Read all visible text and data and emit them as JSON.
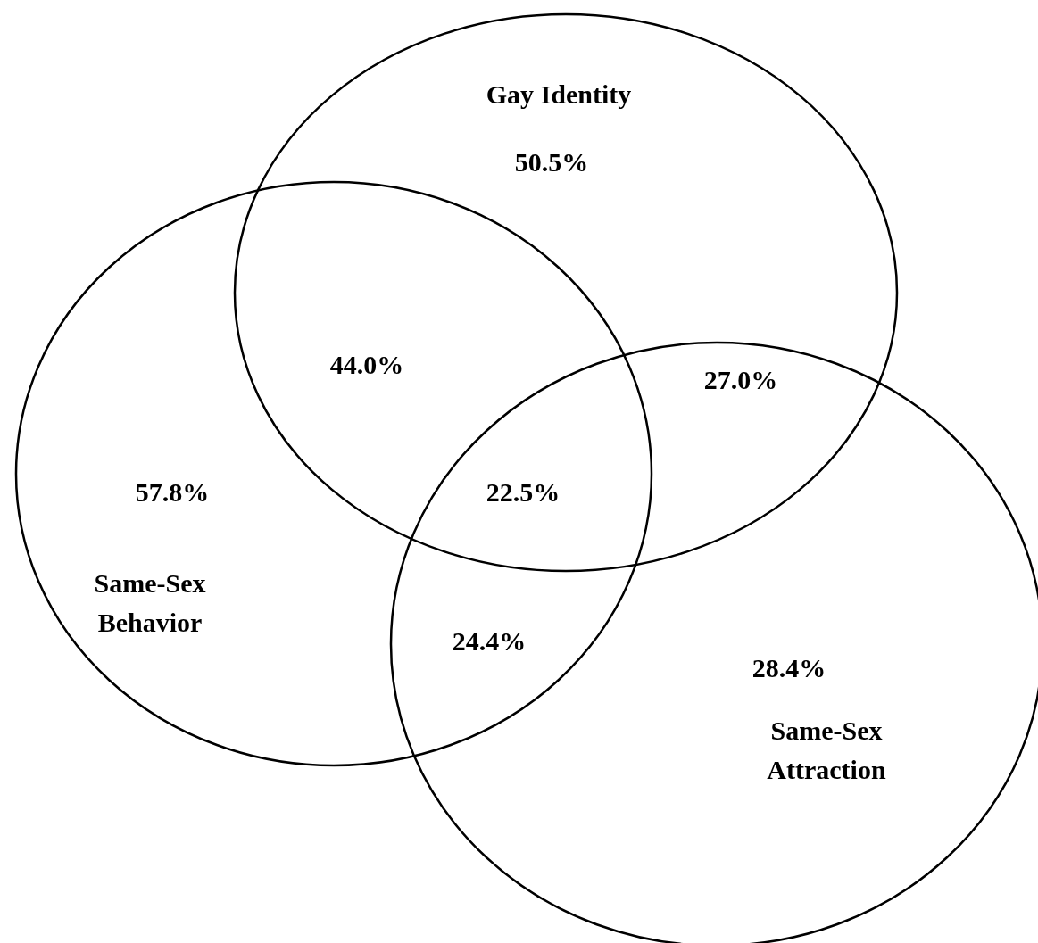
{
  "chart_data": {
    "type": "other",
    "categories": [
      "Gay Identity",
      "Same-Sex Behavior",
      "Same-Sex Attraction"
    ],
    "values": [
      50.5,
      57.8,
      28.4
    ],
    "value_labels": [
      "50.5%",
      "57.8%",
      "28.4%"
    ],
    "data_labels": true,
    "annotations": [
      "44.0%",
      "27.0%",
      "22.5%",
      "24.4%"
    ]
  }
}
